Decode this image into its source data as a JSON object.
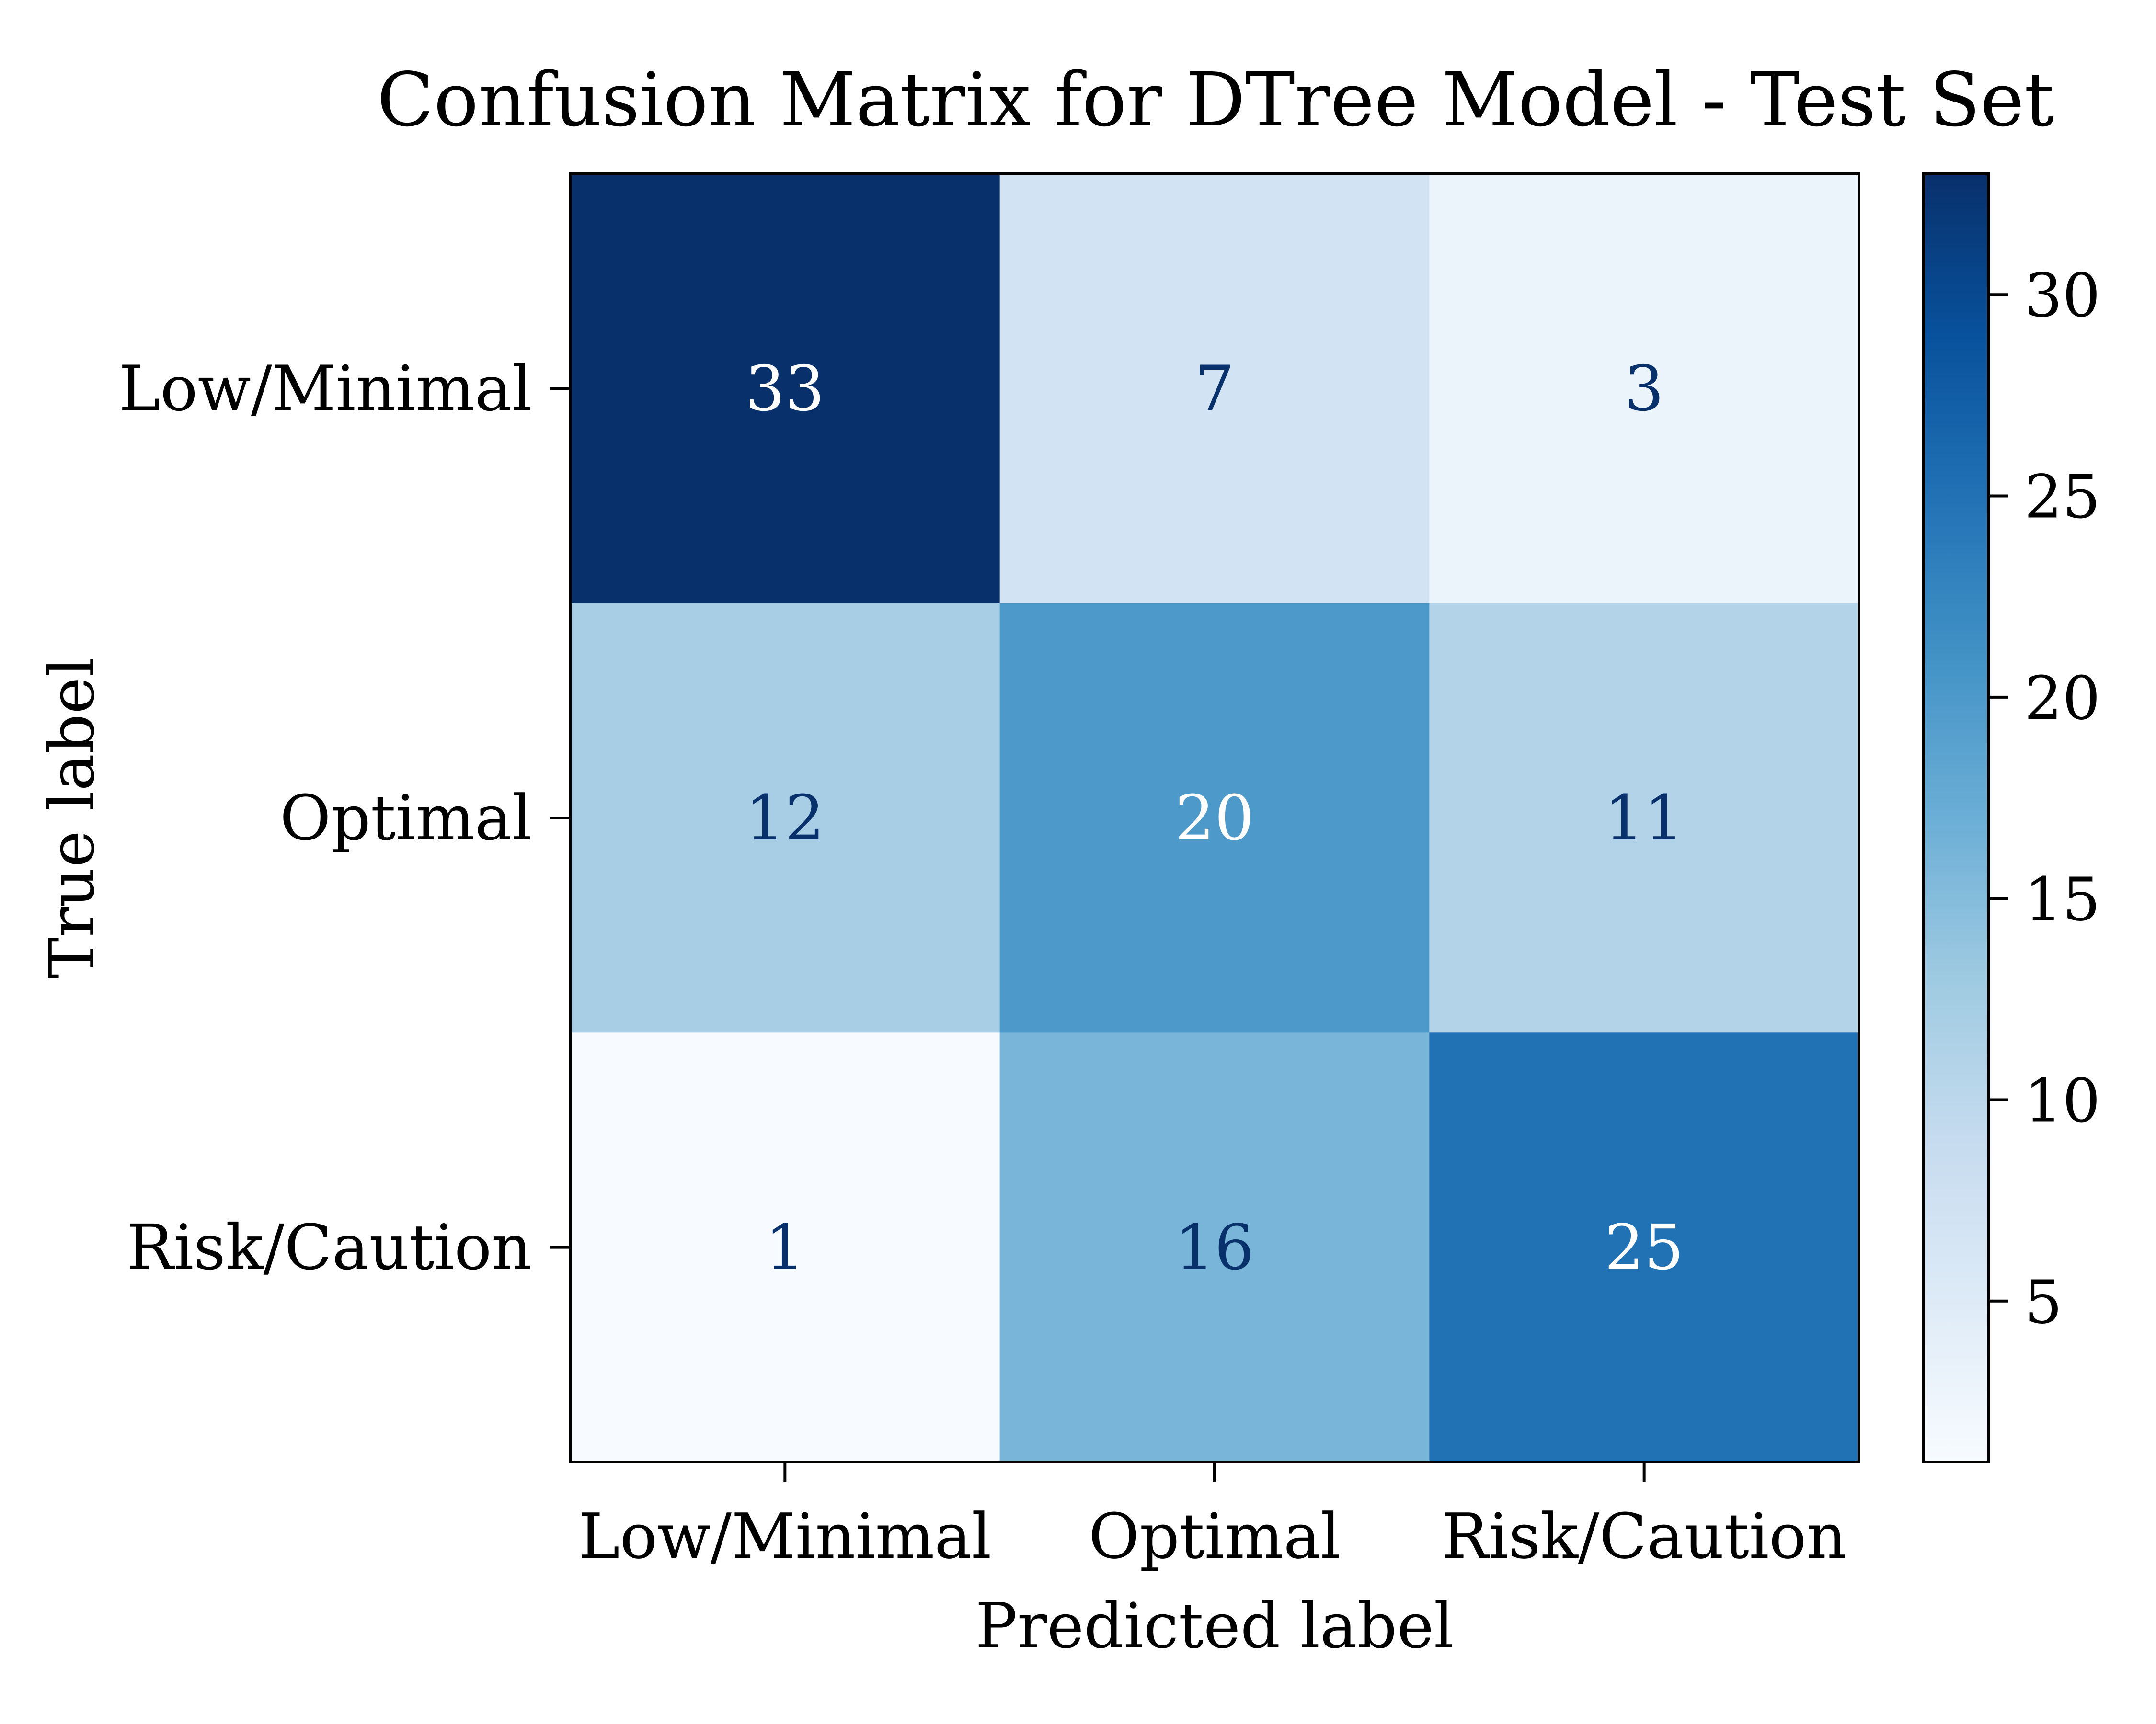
{
  "chart_data": {
    "type": "heatmap",
    "title": "Confusion Matrix for DTree Model - Test Set",
    "xlabel": "Predicted label",
    "ylabel": "True label",
    "x_categories": [
      "Low/Minimal",
      "Optimal",
      "Risk/Caution"
    ],
    "y_categories": [
      "Low/Minimal",
      "Optimal",
      "Risk/Caution"
    ],
    "values": [
      [
        33,
        7,
        3
      ],
      [
        12,
        20,
        11
      ],
      [
        1,
        16,
        25
      ]
    ],
    "colormap": "Blues",
    "color_range": [
      1,
      33
    ],
    "colorbar_ticks": [
      5,
      10,
      15,
      20,
      25,
      30
    ],
    "cell_text_dark": "#08306b",
    "cell_text_light": "#ffffff"
  }
}
